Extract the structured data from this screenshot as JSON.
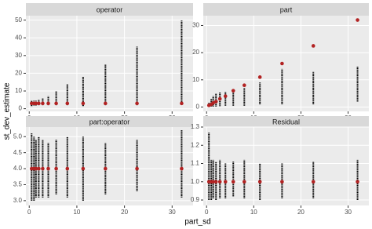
{
  "x_axis_label": "part_sd",
  "y_axis_label": "st_dev_estimate",
  "chart_data": [
    {
      "type": "range-dot",
      "title": "operator",
      "x": [
        0.5,
        1,
        1.41,
        2,
        2.83,
        4,
        5.66,
        8,
        11.31,
        16,
        22.63,
        32
      ],
      "low": [
        1.5,
        1.8,
        1.8,
        2,
        2,
        2,
        2,
        2,
        1.5,
        2,
        2,
        3
      ],
      "high": [
        4.5,
        4.5,
        4.5,
        5,
        6,
        7,
        10,
        14,
        18,
        25,
        35,
        50
      ],
      "mean": [
        3,
        3,
        3,
        3,
        3,
        3,
        3,
        3,
        3,
        3,
        3,
        3
      ],
      "range_color": "#000000",
      "mean_color": "#b22222",
      "xlim": [
        -0.7,
        34.4
      ],
      "xticks": [
        0,
        10,
        20,
        30
      ],
      "ylim": [
        -1.5,
        52.5
      ],
      "yticks": [
        0,
        10,
        20,
        30,
        40,
        50
      ],
      "grid": true
    },
    {
      "type": "range-dot",
      "title": "part",
      "x": [
        0.5,
        1,
        1.41,
        2,
        2.83,
        4,
        5.66,
        8,
        11.31,
        16,
        22.63,
        32
      ],
      "low": [
        0.2,
        0.2,
        0.2,
        0.2,
        0.3,
        0.5,
        0.5,
        0.5,
        1,
        1,
        1,
        2
      ],
      "high": [
        1.5,
        3,
        4,
        5,
        5.5,
        5.5,
        6,
        7,
        9,
        14,
        13,
        15
      ],
      "mean": [
        0.6,
        1,
        1.5,
        2,
        3,
        4,
        6,
        8,
        11,
        16,
        22.5,
        32
      ],
      "range_color": "#000000",
      "mean_color": "#b22222",
      "xlim": [
        -0.7,
        34.4
      ],
      "xticks": [
        0,
        10,
        20,
        30
      ],
      "ylim": [
        -1.6,
        33.6
      ],
      "yticks": [
        0,
        10,
        20,
        30
      ],
      "grid": true
    },
    {
      "type": "range-dot",
      "title": "part:operator",
      "x": [
        0.5,
        1,
        1.41,
        2,
        2.83,
        4,
        5.66,
        8,
        11.31,
        16,
        22.63,
        32
      ],
      "low": [
        3.0,
        3.0,
        3.1,
        3.1,
        3.1,
        3.1,
        3.2,
        3.1,
        3.0,
        3.2,
        3.3,
        3.1
      ],
      "high": [
        5.1,
        5.0,
        4.9,
        5.0,
        4.9,
        4.8,
        4.9,
        5.0,
        5.0,
        4.8,
        4.9,
        5.2
      ],
      "mean": [
        4.0,
        4.0,
        4.0,
        4.0,
        4.0,
        4.0,
        4.0,
        4.0,
        4.0,
        4.0,
        4.0,
        4.0
      ],
      "range_color": "#000000",
      "mean_color": "#b22222",
      "xlim": [
        -0.7,
        34.4
      ],
      "xticks": [
        0,
        10,
        20,
        30
      ],
      "ylim": [
        2.85,
        5.3
      ],
      "yticks": [
        {
          "value": 3,
          "label": "3.0"
        },
        3.5,
        {
          "value": 4,
          "label": "4.0"
        },
        4.5,
        {
          "value": 5,
          "label": "5.0"
        }
      ],
      "grid": true
    },
    {
      "type": "range-dot",
      "title": "Residual",
      "x": [
        0.5,
        1,
        1.41,
        2,
        2.83,
        4,
        5.66,
        8,
        11.31,
        16,
        22.63,
        32
      ],
      "low": [
        0.9,
        0.9,
        0.91,
        0.9,
        0.91,
        0.91,
        0.92,
        0.91,
        0.9,
        0.91,
        0.91,
        0.9
      ],
      "high": [
        1.27,
        1.12,
        1.12,
        1.11,
        1.12,
        1.1,
        1.11,
        1.12,
        1.1,
        1.1,
        1.11,
        1.12
      ],
      "mean": [
        1.0,
        1.0,
        1.0,
        1.0,
        1.0,
        1.0,
        1.0,
        1.0,
        1.0,
        1.0,
        1.0,
        1.0
      ],
      "range_color": "#000000",
      "mean_color": "#b22222",
      "xlim": [
        -0.7,
        34.4
      ],
      "xticks": [
        0,
        10,
        20,
        30
      ],
      "ylim": [
        0.87,
        1.3
      ],
      "yticks": [
        0.9,
        {
          "value": 1,
          "label": "1.0"
        },
        1.1,
        1.2,
        1.3
      ],
      "grid": true
    }
  ]
}
